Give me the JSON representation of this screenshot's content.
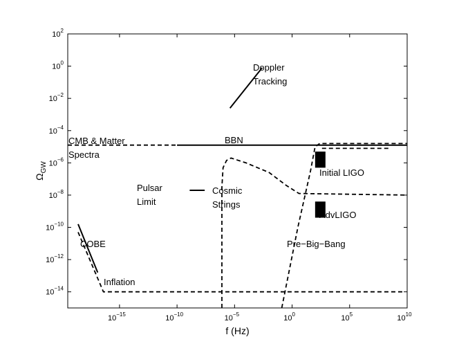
{
  "chart_data": {
    "type": "line",
    "xlabel": "f (Hz)",
    "ylabel": "Ω",
    "ylabel_sub": "GW",
    "xscale": "log",
    "yscale": "log",
    "x_log_range": [
      -19.5,
      10
    ],
    "y_log_range": [
      -15,
      2
    ],
    "x_ticks": [
      {
        "log": -15,
        "base": "10",
        "exp": "−15"
      },
      {
        "log": -10,
        "base": "10",
        "exp": "−10"
      },
      {
        "log": -5,
        "base": "10",
        "exp": "−5"
      },
      {
        "log": 0,
        "base": "10",
        "exp": "0"
      },
      {
        "log": 5,
        "base": "10",
        "exp": "5"
      },
      {
        "log": 10,
        "base": "10",
        "exp": "10"
      }
    ],
    "y_ticks": [
      {
        "log": 2,
        "base": "10",
        "exp": "2"
      },
      {
        "log": 0,
        "base": "10",
        "exp": "0"
      },
      {
        "log": -2,
        "base": "10",
        "exp": "−2"
      },
      {
        "log": -4,
        "base": "10",
        "exp": "−4"
      },
      {
        "log": -6,
        "base": "10",
        "exp": "−6"
      },
      {
        "log": -8,
        "base": "10",
        "exp": "−8"
      },
      {
        "log": -10,
        "base": "10",
        "exp": "−10"
      },
      {
        "log": -12,
        "base": "10",
        "exp": "−12"
      },
      {
        "log": -14,
        "base": "10",
        "exp": "−14"
      }
    ],
    "grid": false,
    "series": [
      {
        "id": "doppler",
        "style": "solid",
        "points": [
          [
            -5.4,
            -2.6
          ],
          [
            -2.6,
            -0.1
          ]
        ]
      },
      {
        "id": "bbn",
        "style": "solid",
        "points": [
          [
            -10,
            -4.9
          ],
          [
            10,
            -4.9
          ]
        ]
      },
      {
        "id": "pulsar",
        "style": "solid",
        "points": [
          [
            -8.9,
            -7.7
          ],
          [
            -7.6,
            -7.7
          ]
        ]
      },
      {
        "id": "cobe",
        "style": "solid",
        "points": [
          [
            -18.6,
            -9.8
          ],
          [
            -16.9,
            -12.8
          ]
        ]
      },
      {
        "id": "inflation",
        "style": "dashed",
        "points": [
          [
            -18.6,
            -10.3
          ],
          [
            -16.4,
            -14
          ],
          [
            9.8,
            -14
          ]
        ]
      },
      {
        "id": "cmb-matter",
        "style": "dashed",
        "points": [
          [
            -19.5,
            -4.9
          ],
          [
            -10,
            -4.9
          ]
        ]
      },
      {
        "id": "cosmic-strings",
        "style": "dashed",
        "points": [
          [
            -6.1,
            -15
          ],
          [
            -6.1,
            -7.5
          ],
          [
            -6.0,
            -6.3
          ],
          [
            -5.7,
            -5.85
          ],
          [
            -5.3,
            -5.7
          ],
          [
            -4.0,
            -6.0
          ],
          [
            -2.0,
            -6.6
          ],
          [
            -0.5,
            -7.4
          ],
          [
            0.6,
            -7.9
          ],
          [
            10,
            -8.0
          ]
        ]
      },
      {
        "id": "pre-big-bang",
        "style": "dashed",
        "points": [
          [
            -0.9,
            -15
          ],
          [
            0.5,
            -10
          ],
          [
            1.6,
            -6.5
          ],
          [
            2.0,
            -5.0
          ],
          [
            2.4,
            -4.8
          ],
          [
            10,
            -4.8
          ]
        ]
      },
      {
        "id": "pre-big-bang-upper",
        "style": "dashed",
        "points": [
          [
            2.6,
            -5.1
          ],
          [
            8.5,
            -5.1
          ]
        ]
      }
    ],
    "bands": [
      {
        "id": "initial-ligo",
        "x_log": [
          2.0,
          2.9
        ],
        "y_log": [
          -5.3,
          -6.3
        ]
      },
      {
        "id": "adv-ligo",
        "x_log": [
          2.0,
          2.9
        ],
        "y_log": [
          -8.4,
          -9.4
        ]
      }
    ],
    "annotations": [
      {
        "id": "doppler-tracking",
        "lines": [
          "Doppler",
          "Tracking"
        ]
      },
      {
        "id": "bbn",
        "lines": [
          "BBN"
        ]
      },
      {
        "id": "cmb-matter-spectra",
        "lines": [
          "CMB & Matter",
          "Spectra"
        ]
      },
      {
        "id": "initial-ligo",
        "lines": [
          "Initial LIGO"
        ]
      },
      {
        "id": "pulsar-limit",
        "lines": [
          "Pulsar",
          "Limit"
        ]
      },
      {
        "id": "cosmic-strings",
        "lines": [
          "Cosmic",
          "Strings"
        ]
      },
      {
        "id": "adv-ligo",
        "lines": [
          "AdvLIGO"
        ]
      },
      {
        "id": "cobe",
        "lines": [
          "COBE"
        ]
      },
      {
        "id": "pre-big-bang",
        "lines": [
          "Pre−Big−Bang"
        ]
      },
      {
        "id": "inflation",
        "lines": [
          "Inflation"
        ]
      }
    ]
  }
}
